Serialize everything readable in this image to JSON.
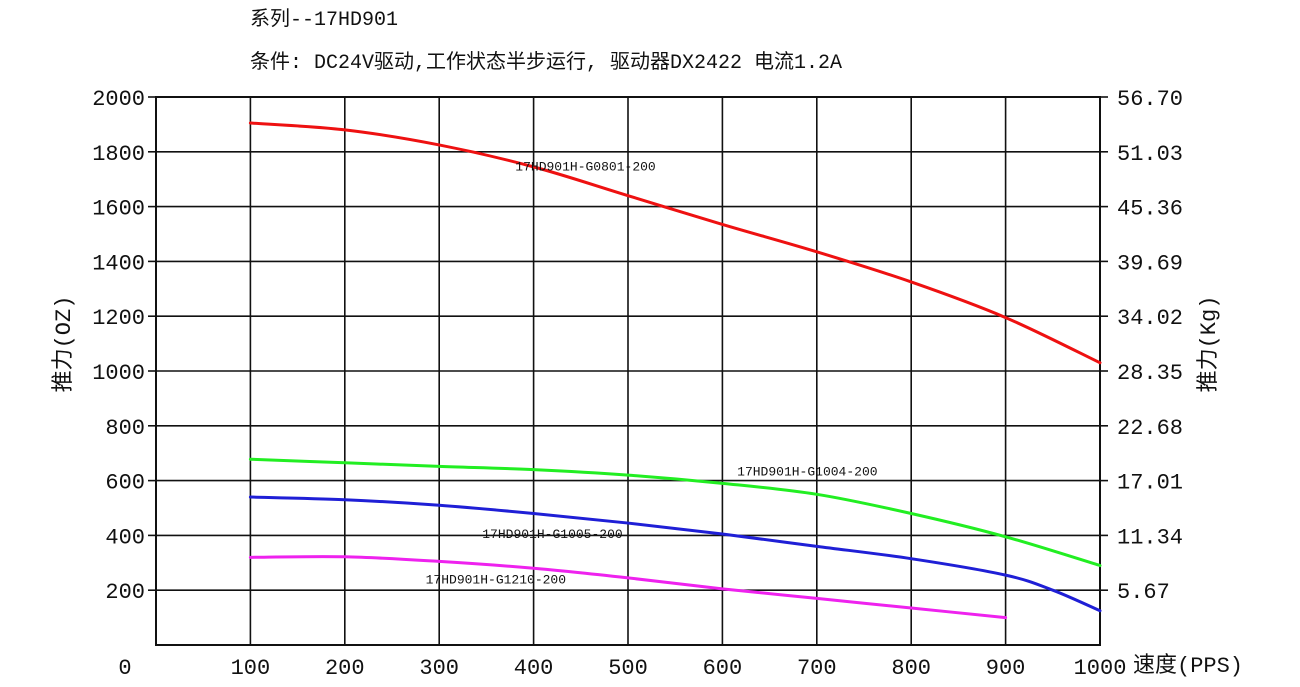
{
  "header": {
    "title": "系列--17HD901",
    "subtitle": "条件: DC24V驱动,工作状态半步运行, 驱动器DX2422 电流1.2A"
  },
  "chart_data": {
    "type": "line",
    "title": "系列--17HD901",
    "subtitle": "条件: DC24V驱动,工作状态半步运行, 驱动器DX2422 电流1.2A",
    "xlabel": "速度(PPS)",
    "ylabel": "推力(OZ)",
    "ylabel_right": "推力(Kg)",
    "xlim": [
      0,
      1000
    ],
    "ylim": [
      0,
      2000
    ],
    "x_ticks": [
      "0",
      "100",
      "200",
      "300",
      "400",
      "500",
      "600",
      "700",
      "800",
      "900",
      "1000"
    ],
    "x_tick_values": [
      0,
      100,
      200,
      300,
      400,
      500,
      600,
      700,
      800,
      900,
      1000
    ],
    "y_ticks": [
      "2000",
      "1800",
      "1600",
      "1400",
      "1200",
      "1000",
      "800",
      "600",
      "400",
      "200"
    ],
    "y_tick_values": [
      2000,
      1800,
      1600,
      1400,
      1200,
      1000,
      800,
      600,
      400,
      200
    ],
    "y_right_ticks": [
      "56.70",
      "51.03",
      "45.36",
      "39.69",
      "34.02",
      "28.35",
      "22.68",
      "17.01",
      "11.34",
      "5.67"
    ],
    "grid": true,
    "series": [
      {
        "name": "17HD901H-G0801-200",
        "color": "#ee1111",
        "x": [
          100,
          200,
          300,
          400,
          500,
          600,
          700,
          800,
          900,
          1000
        ],
        "y": [
          1905,
          1880,
          1825,
          1745,
          1640,
          1535,
          1435,
          1325,
          1195,
          1030
        ],
        "label_x": 455,
        "label_y": 1732
      },
      {
        "name": "17HD901H-G1004-200",
        "color": "#22ee22",
        "x": [
          100,
          200,
          300,
          400,
          500,
          600,
          700,
          800,
          900,
          1000
        ],
        "y": [
          678,
          665,
          652,
          640,
          620,
          590,
          550,
          480,
          395,
          290
        ],
        "label_x": 690,
        "label_y": 618
      },
      {
        "name": "17HD901H-G1005-200",
        "color": "#1f1fd6",
        "x": [
          100,
          200,
          300,
          400,
          500,
          600,
          700,
          800,
          900,
          950,
          1000
        ],
        "y": [
          540,
          530,
          510,
          480,
          445,
          405,
          360,
          315,
          255,
          200,
          125
        ],
        "label_x": 420,
        "label_y": 390
      },
      {
        "name": "17HD901H-G1210-200",
        "color": "#ee22ee",
        "x": [
          100,
          200,
          300,
          400,
          500,
          600,
          700,
          800,
          900
        ],
        "y": [
          320,
          322,
          305,
          280,
          245,
          205,
          170,
          135,
          100
        ],
        "label_x": 360,
        "label_y": 225
      }
    ]
  }
}
